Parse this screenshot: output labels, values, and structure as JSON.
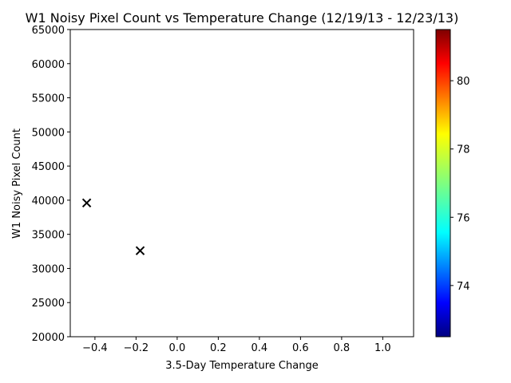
{
  "chart_data": {
    "type": "scatter",
    "title": "W1 Noisy Pixel Count vs Temperature Change (12/19/13 - 12/23/13)",
    "xlabel": "3.5-Day Temperature Change",
    "ylabel": "W1 Noisy Pixel Count",
    "xlim": [
      -0.52,
      1.15
    ],
    "ylim": [
      20000,
      65000
    ],
    "x_ticks": [
      -0.4,
      -0.2,
      0.0,
      0.2,
      0.4,
      0.6,
      0.8,
      1.0
    ],
    "x_tick_labels": [
      "−0.4",
      "−0.2",
      "0.0",
      "0.2",
      "0.4",
      "0.6",
      "0.8",
      "1.0"
    ],
    "y_ticks": [
      20000,
      25000,
      30000,
      35000,
      40000,
      45000,
      50000,
      55000,
      60000,
      65000
    ],
    "y_tick_labels": [
      "20000",
      "25000",
      "30000",
      "35000",
      "40000",
      "45000",
      "50000",
      "55000",
      "60000",
      "65000"
    ],
    "grid": false,
    "marker": "x",
    "marker_color": "#000000",
    "points": [
      {
        "x": -0.44,
        "y": 39600
      },
      {
        "x": -0.18,
        "y": 32600
      }
    ],
    "colorbar": {
      "colormap": "jet",
      "range": [
        72.5,
        81.5
      ],
      "ticks": [
        74,
        76,
        78,
        80
      ],
      "tick_labels": [
        "74",
        "76",
        "78",
        "80"
      ]
    }
  }
}
